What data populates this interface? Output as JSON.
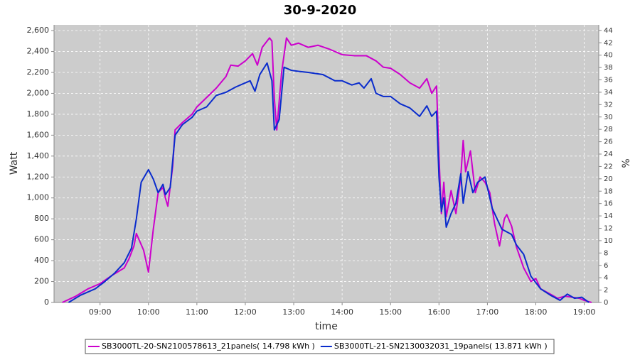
{
  "chart_data": {
    "type": "line",
    "title": "30-9-2020",
    "xlabel": "time",
    "ylabel": "Watt",
    "y2label": "%",
    "xlim": [
      8.05,
      19.3
    ],
    "xticks": [
      {
        "value": 9,
        "label": "09:00"
      },
      {
        "value": 10,
        "label": "10:00"
      },
      {
        "value": 11,
        "label": "11:00"
      },
      {
        "value": 12,
        "label": "12:00"
      },
      {
        "value": 13,
        "label": "13:00"
      },
      {
        "value": 14,
        "label": "14:00"
      },
      {
        "value": 15,
        "label": "15:00"
      },
      {
        "value": 16,
        "label": "16:00"
      },
      {
        "value": 17,
        "label": "17:00"
      },
      {
        "value": 18,
        "label": "18:00"
      },
      {
        "value": 19,
        "label": "19:00"
      }
    ],
    "ylim": [
      0,
      2655
    ],
    "yticks": [
      0,
      200,
      400,
      600,
      800,
      {
        "value": 1000,
        "label": "1,000"
      },
      {
        "value": 1200,
        "label": "1,200"
      },
      {
        "value": 1400,
        "label": "1,400"
      },
      {
        "value": 1600,
        "label": "1,600"
      },
      {
        "value": 1800,
        "label": "1,800"
      },
      {
        "value": 2000,
        "label": "2,000"
      },
      {
        "value": 2200,
        "label": "2,200"
      },
      {
        "value": 2400,
        "label": "2,400"
      },
      {
        "value": 2600,
        "label": "2,600"
      }
    ],
    "y2lim": [
      0,
      44.9
    ],
    "y2ticks": [
      0,
      2,
      4,
      6,
      8,
      10,
      12,
      14,
      16,
      18,
      20,
      22,
      24,
      26,
      28,
      30,
      32,
      34,
      36,
      38,
      40,
      42,
      44
    ],
    "grid": true,
    "legend": "bottom",
    "series": [
      {
        "name": "SB3000TL-20-SN2100578613_21panels( 14.798 kWh )",
        "color": "#cc00cc",
        "x": [
          8.22,
          8.5,
          8.75,
          9.0,
          9.25,
          9.5,
          9.6,
          9.7,
          9.75,
          9.9,
          10.0,
          10.1,
          10.2,
          10.3,
          10.35,
          10.4,
          10.5,
          10.55,
          10.7,
          10.9,
          11.0,
          11.2,
          11.4,
          11.6,
          11.7,
          11.85,
          12.0,
          12.15,
          12.25,
          12.35,
          12.5,
          12.55,
          12.6,
          12.65,
          12.75,
          12.85,
          12.95,
          13.1,
          13.3,
          13.5,
          13.75,
          14.0,
          14.25,
          14.5,
          14.7,
          14.85,
          15.0,
          15.2,
          15.4,
          15.6,
          15.75,
          15.85,
          15.95,
          16.0,
          16.05,
          16.1,
          16.15,
          16.25,
          16.35,
          16.45,
          16.5,
          16.55,
          16.65,
          16.75,
          16.85,
          16.95,
          17.05,
          17.15,
          17.25,
          17.35,
          17.4,
          17.5,
          17.6,
          17.75,
          17.9,
          18.0,
          18.1,
          18.3,
          18.45,
          18.6,
          18.75,
          18.9,
          19.0,
          19.15
        ],
        "values": [
          0,
          60,
          130,
          180,
          260,
          330,
          420,
          540,
          660,
          500,
          290,
          700,
          1050,
          1100,
          1000,
          920,
          1300,
          1650,
          1720,
          1800,
          1870,
          1960,
          2050,
          2160,
          2270,
          2260,
          2310,
          2380,
          2270,
          2440,
          2530,
          2500,
          1950,
          1650,
          2200,
          2530,
          2460,
          2480,
          2440,
          2460,
          2420,
          2370,
          2360,
          2360,
          2310,
          2250,
          2240,
          2180,
          2100,
          2050,
          2140,
          2000,
          2070,
          1400,
          850,
          1150,
          820,
          1070,
          850,
          1200,
          1550,
          1250,
          1450,
          1050,
          1200,
          1150,
          1050,
          750,
          540,
          800,
          840,
          730,
          530,
          330,
          200,
          230,
          130,
          80,
          40,
          60,
          50,
          40,
          20,
          0
        ]
      },
      {
        "name": "SB3000TL-21-SN2130032031_19panels( 13.871 kWh )",
        "color": "#0a2ccc",
        "x": [
          8.35,
          8.6,
          8.9,
          9.1,
          9.3,
          9.5,
          9.65,
          9.75,
          9.85,
          10.0,
          10.1,
          10.2,
          10.3,
          10.35,
          10.45,
          10.55,
          10.7,
          10.9,
          11.0,
          11.2,
          11.4,
          11.6,
          11.8,
          12.0,
          12.1,
          12.2,
          12.3,
          12.45,
          12.55,
          12.6,
          12.7,
          12.8,
          12.95,
          13.1,
          13.3,
          13.6,
          13.85,
          14.0,
          14.2,
          14.35,
          14.45,
          14.6,
          14.7,
          14.85,
          15.0,
          15.2,
          15.4,
          15.6,
          15.75,
          15.85,
          15.95,
          16.0,
          16.05,
          16.1,
          16.15,
          16.25,
          16.35,
          16.45,
          16.5,
          16.6,
          16.7,
          16.8,
          16.95,
          17.1,
          17.3,
          17.5,
          17.6,
          17.75,
          17.9,
          18.1,
          18.3,
          18.5,
          18.65,
          18.8,
          18.95,
          19.1
        ],
        "values": [
          0,
          70,
          130,
          200,
          280,
          380,
          520,
          800,
          1150,
          1270,
          1180,
          1050,
          1130,
          1030,
          1100,
          1600,
          1700,
          1770,
          1830,
          1870,
          1980,
          2010,
          2060,
          2100,
          2120,
          2020,
          2180,
          2290,
          2120,
          1650,
          1750,
          2250,
          2220,
          2210,
          2200,
          2180,
          2120,
          2120,
          2080,
          2100,
          2050,
          2140,
          2000,
          1970,
          1970,
          1900,
          1860,
          1780,
          1880,
          1780,
          1830,
          1200,
          870,
          1000,
          720,
          850,
          950,
          1230,
          950,
          1250,
          1050,
          1150,
          1200,
          900,
          700,
          650,
          550,
          460,
          250,
          130,
          70,
          20,
          80,
          40,
          50,
          0
        ]
      }
    ]
  }
}
